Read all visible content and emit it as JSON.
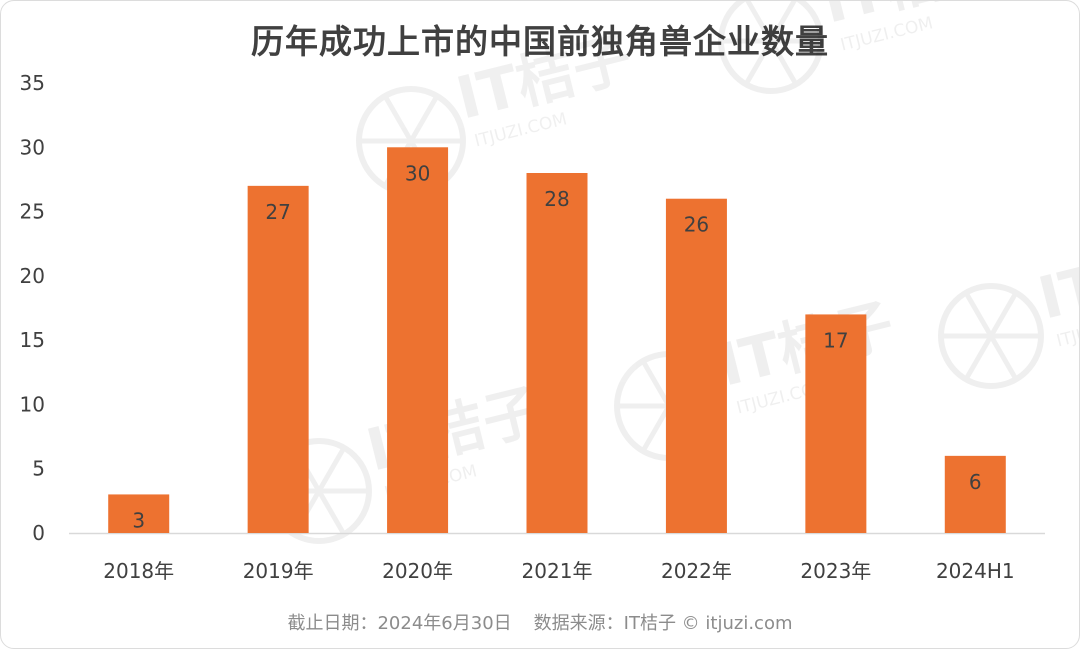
{
  "chart_data": {
    "type": "bar",
    "title": "历年成功上市的中国前独角兽企业数量",
    "categories": [
      "2018年",
      "2019年",
      "2020年",
      "2021年",
      "2022年",
      "2023年",
      "2024H1"
    ],
    "values": [
      3,
      27,
      30,
      28,
      26,
      17,
      6
    ],
    "data_labels": [
      "3",
      "27",
      "30",
      "28",
      "26",
      "17",
      "6"
    ],
    "yticks": [
      "0",
      "5",
      "10",
      "15",
      "20",
      "25",
      "30",
      "35"
    ],
    "ylim": [
      0,
      35
    ],
    "xlabel": "",
    "ylabel": "",
    "grid": false,
    "legend": "none",
    "bar_color": "#ED7230",
    "label_color": "#404040"
  },
  "footer": {
    "cutoff": "截止日期：2024年6月30日",
    "source": "数据来源：IT桔子 © itjuzi.com"
  },
  "watermark": {
    "brand": "IT桔子",
    "site": "ITJUZI.COM"
  }
}
